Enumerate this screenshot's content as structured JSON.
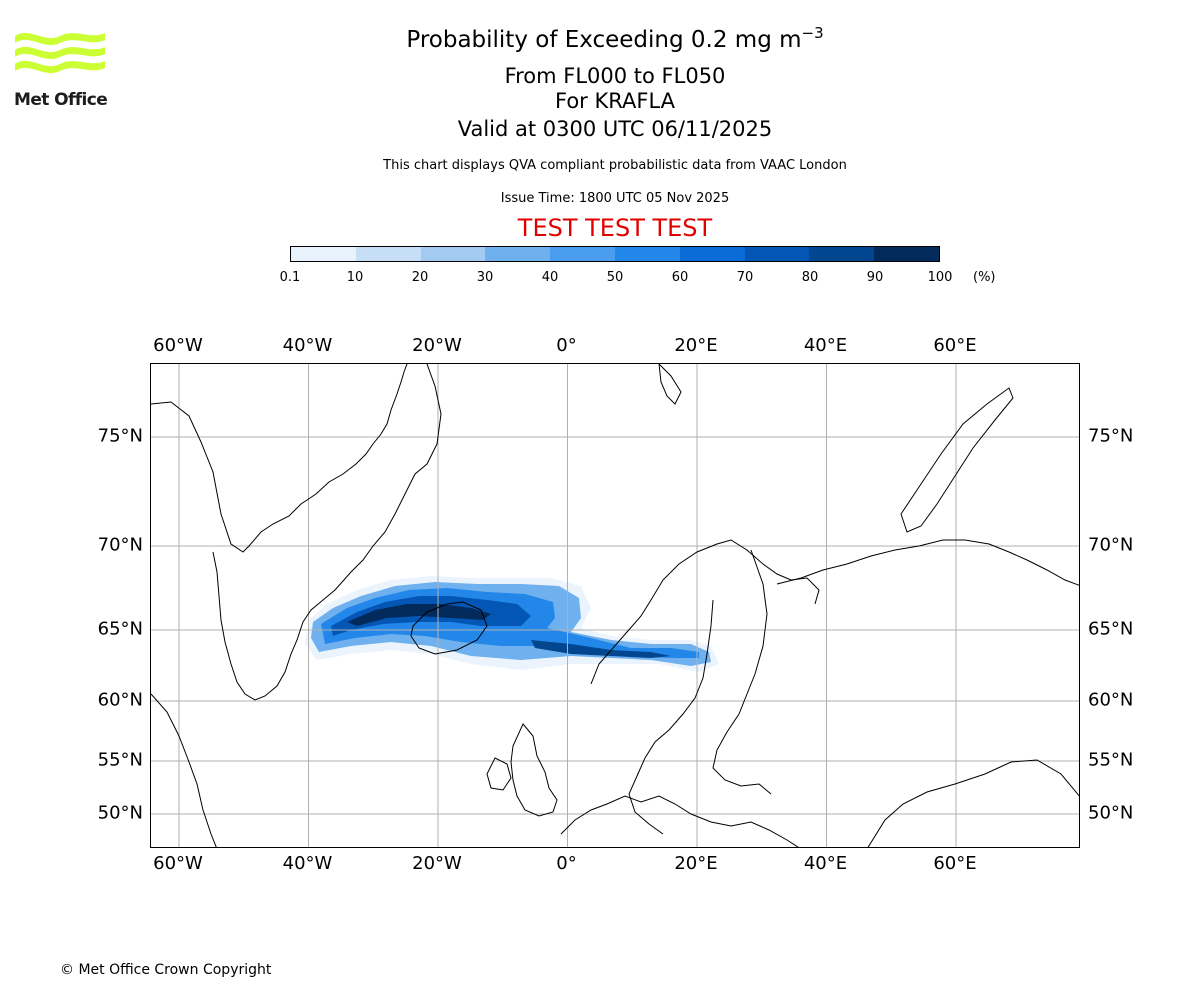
{
  "logo": {
    "text": "Met Office",
    "color": "#ccff33"
  },
  "header": {
    "title_main": "Probability of Exceeding 0.2 mg m",
    "title_exponent": "−3",
    "level_range": "From FL000 to FL050",
    "volcano": "For KRAFLA",
    "valid_time": "Valid at 0300 UTC 06/11/2025",
    "disclaimer": "This chart displays QVA compliant probabilistic data from VAAC London",
    "issue_time": "Issue Time: 1800 UTC 05 Nov 2025",
    "test_banner": "TEST TEST TEST",
    "test_color": "#e00000"
  },
  "colorbar": {
    "ticks": [
      "0.1",
      "10",
      "20",
      "30",
      "40",
      "50",
      "60",
      "70",
      "80",
      "90",
      "100"
    ],
    "unit": "(%)",
    "colors": [
      "#e8f2fc",
      "#c6def6",
      "#a3cbf2",
      "#6fb0ef",
      "#4a9cee",
      "#2387ea",
      "#0a6ad6",
      "#0456b5",
      "#034690",
      "#022b5c"
    ]
  },
  "map": {
    "lon_labels": [
      "60°W",
      "40°W",
      "20°W",
      "0°",
      "20°E",
      "40°E",
      "60°E"
    ],
    "lat_labels": [
      "75°N",
      "70°N",
      "65°N",
      "60°N",
      "55°N",
      "50°N"
    ]
  },
  "footer": {
    "copyright": "© Met Office Crown Copyright"
  }
}
